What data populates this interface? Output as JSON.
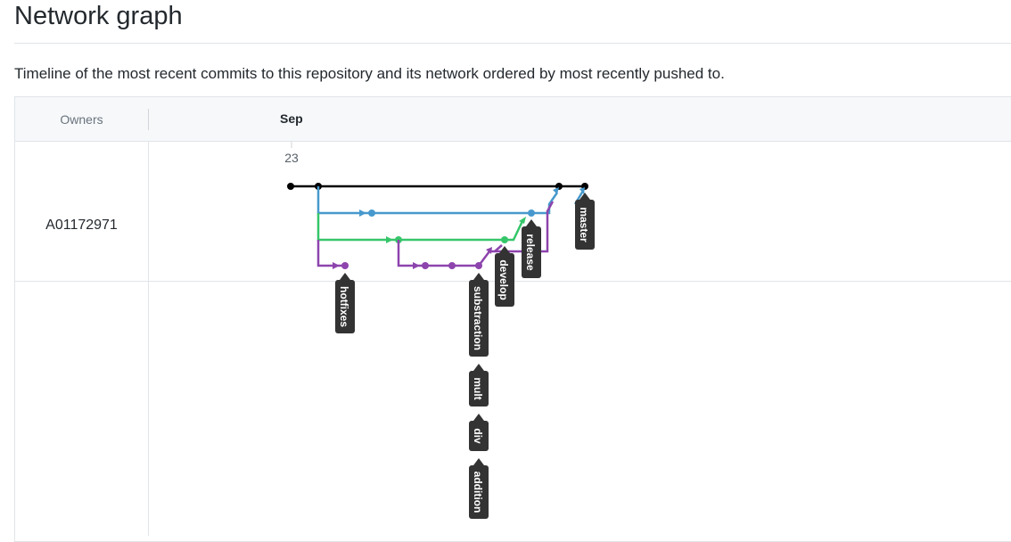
{
  "page": {
    "title": "Network graph",
    "description": "Timeline of the most recent commits to this repository and its network ordered by most recently pushed to."
  },
  "graph": {
    "owners_label": "Owners",
    "month": "Sep",
    "day": "23",
    "owner": "A01172971",
    "branch_colors": {
      "master": "#000000",
      "blue": "#4799cd",
      "green": "#36c66a",
      "purple": "#8d44ad",
      "tag_bg": "#333333"
    },
    "branch_labels": {
      "hotfixes": "hotfixes",
      "substraction": "substraction",
      "mult": "mult",
      "div": "div",
      "addition": "addition",
      "develop": "develop",
      "release": "release",
      "master": "master"
    }
  }
}
